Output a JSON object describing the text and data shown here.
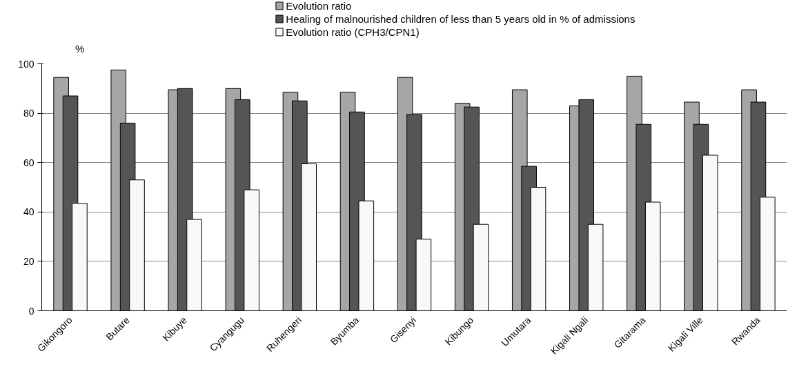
{
  "chart_data": {
    "type": "bar",
    "ylabel": "%",
    "categories": [
      "Gikongoro",
      "Butare",
      "Kibuye",
      "Cyangugu",
      "Ruhengeri",
      "Byumba",
      "Gisenyi",
      "Kibungo",
      "Umutara",
      "Kigali Ngali",
      "Gitarama",
      "Kigali Ville",
      "Rwanda"
    ],
    "series": [
      {
        "name": "Evolution ratio",
        "color": "#a6a6a6",
        "values": [
          94.5,
          97.5,
          89.5,
          90,
          88.5,
          88.5,
          94.5,
          84,
          89.5,
          83,
          95,
          84.5,
          89.5
        ]
      },
      {
        "name": "Healing of malnourished children of less than 5 years old in % of admissions",
        "color": "#555555",
        "values": [
          87,
          76,
          90,
          85.5,
          85,
          80.5,
          79.5,
          82.5,
          58.5,
          85.5,
          75.5,
          75.5,
          84.5
        ]
      },
      {
        "name": "Evolution ratio (CPH3/CPN1)",
        "color": "#f8f8f8",
        "values": [
          43.5,
          53,
          37,
          49,
          59.5,
          44.5,
          29,
          35,
          50,
          35,
          44,
          63,
          46
        ]
      }
    ],
    "ylim": [
      0,
      100
    ],
    "yticks": [
      0,
      20,
      40,
      60,
      80,
      100
    ],
    "grid": "y",
    "legend": "top"
  }
}
